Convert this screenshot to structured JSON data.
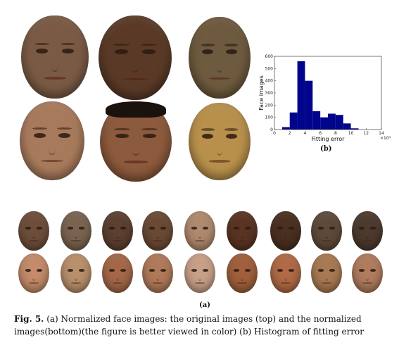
{
  "panel_a_label": "(a)",
  "panel_b_label": "(b)",
  "caption": {
    "figure_label": "Fig. 5.",
    "text": "(a) Normalized face images: the original images (top) and the normalized images(bottom)(the figure is better viewed in color) (b) Histogram of fitting error"
  },
  "colors": {
    "bar": "#00058c",
    "top_faces": [
      "#7a5a44",
      "#5a3a26",
      "#6e5a3e"
    ],
    "bottom_faces": [
      "#a87a5c",
      "#8c5a3c",
      "#b8904c"
    ],
    "small_top": [
      "#6e4e3a",
      "#7a6450",
      "#5c4030",
      "#6a4a34",
      "#b08a6e",
      "#5a3422",
      "#4a3020",
      "#5e4a3a",
      "#4c3a2e"
    ],
    "small_bottom": [
      "#c48c6a",
      "#b8906c",
      "#a46848",
      "#b07a5a",
      "#c8a088",
      "#a0603c",
      "#b06a46",
      "#a87a52",
      "#b07c5e"
    ]
  },
  "chart_data": {
    "type": "bar",
    "xlabel": "Fitting error",
    "ylabel": "Face images",
    "x_scale_label": "×10⁴",
    "xlim": [
      0,
      14
    ],
    "ylim": [
      0,
      600
    ],
    "xticks": [
      "0",
      "2",
      "4",
      "6",
      "8",
      "10",
      "12",
      "14"
    ],
    "yticks": [
      "0",
      "100",
      "200",
      "300",
      "400",
      "500",
      "600"
    ],
    "bin_edges": [
      1,
      2,
      3,
      4,
      5,
      6,
      7,
      8,
      9,
      10,
      11
    ],
    "values": [
      20,
      140,
      560,
      400,
      150,
      100,
      130,
      120,
      50,
      10
    ],
    "grid": false
  }
}
